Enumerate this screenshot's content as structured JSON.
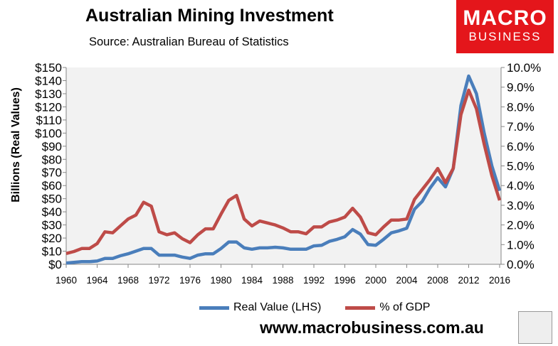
{
  "header": {
    "title": "Australian Mining Investment",
    "source": "Source: Australian Bureau of Statistics"
  },
  "logo": {
    "line1": "MACRO",
    "line2": "BUSINESS"
  },
  "footer": {
    "url": "www.macrobusiness.com.au"
  },
  "colors": {
    "real": "#4a7ebb",
    "gdp": "#be4b48",
    "plot_bg": "#f2f2f2",
    "logo": "#e4161b"
  },
  "chart_data": {
    "type": "line",
    "title": "Australian Mining Investment",
    "ylabel": "Billions (Real Values)",
    "xlabel": "",
    "x": [
      1960,
      1961,
      1962,
      1963,
      1964,
      1965,
      1966,
      1967,
      1968,
      1969,
      1970,
      1971,
      1972,
      1973,
      1974,
      1975,
      1976,
      1977,
      1978,
      1979,
      1980,
      1981,
      1982,
      1983,
      1984,
      1985,
      1986,
      1987,
      1988,
      1989,
      1990,
      1991,
      1992,
      1993,
      1994,
      1995,
      1996,
      1997,
      1998,
      1999,
      2000,
      2001,
      2002,
      2003,
      2004,
      2005,
      2006,
      2007,
      2008,
      2009,
      2010,
      2011,
      2012,
      2013,
      2014,
      2015,
      2016
    ],
    "xticks": [
      "1960",
      "1964",
      "1968",
      "1972",
      "1976",
      "1980",
      "1984",
      "1988",
      "1992",
      "1996",
      "2000",
      "2004",
      "2008",
      "2012",
      "2016"
    ],
    "ylim": [
      0,
      150
    ],
    "yticks": [
      "$0",
      "$10",
      "$20",
      "$30",
      "$40",
      "$50",
      "$60",
      "$70",
      "$80",
      "$90",
      "$100",
      "$110",
      "$120",
      "$130",
      "$140",
      "$150"
    ],
    "y2lim": [
      0,
      10
    ],
    "y2ticks": [
      "0.0%",
      "1.0%",
      "2.0%",
      "3.0%",
      "4.0%",
      "5.0%",
      "6.0%",
      "7.0%",
      "8.0%",
      "9.0%",
      "10.0%"
    ],
    "legend_position": "bottom",
    "series": [
      {
        "name": "Real Value (LHS)",
        "axis": "left",
        "values": [
          1,
          1.5,
          2,
          2,
          2.5,
          4.5,
          4.5,
          6.5,
          8,
          10,
          12,
          12,
          7,
          7,
          7,
          5.5,
          4.5,
          7,
          8,
          8,
          12,
          17,
          17,
          12.5,
          11.5,
          12.5,
          12.5,
          13,
          12.5,
          11.5,
          11.5,
          11.5,
          14,
          14.5,
          17.5,
          19,
          21,
          26.5,
          23,
          15,
          14.5,
          19,
          24,
          25.5,
          27.5,
          42,
          48,
          58,
          66,
          59,
          73,
          121,
          143.5,
          130,
          100,
          75,
          56
        ]
      },
      {
        "name": "% of GDP",
        "axis": "right",
        "values": [
          0.55,
          0.65,
          0.8,
          0.8,
          1.05,
          1.65,
          1.6,
          1.95,
          2.3,
          2.5,
          3.15,
          2.95,
          1.65,
          1.5,
          1.6,
          1.3,
          1.1,
          1.5,
          1.8,
          1.8,
          2.55,
          3.25,
          3.5,
          2.3,
          1.95,
          2.2,
          2.1,
          2.0,
          1.85,
          1.65,
          1.65,
          1.55,
          1.9,
          1.9,
          2.15,
          2.25,
          2.4,
          2.85,
          2.4,
          1.6,
          1.5,
          1.9,
          2.25,
          2.25,
          2.3,
          3.3,
          3.8,
          4.3,
          4.87,
          4.15,
          4.87,
          7.6,
          8.85,
          7.9,
          6.1,
          4.5,
          3.25
        ]
      }
    ]
  }
}
